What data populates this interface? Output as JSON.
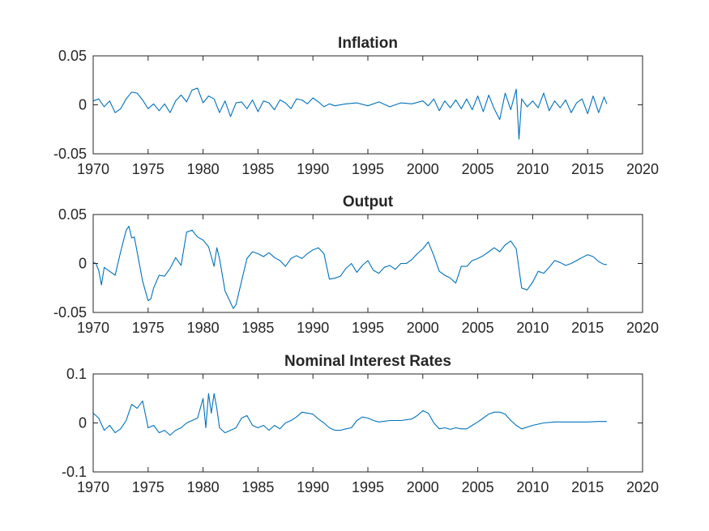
{
  "colors": {
    "series": "#0072BD",
    "axis": "#262626",
    "background": "#ffffff"
  },
  "chart_data": [
    {
      "type": "line",
      "title": "Inflation",
      "xlim": [
        1970,
        2020
      ],
      "ylim": [
        -0.05,
        0.05
      ],
      "xticks": [
        1970,
        1975,
        1980,
        1985,
        1990,
        1995,
        2000,
        2005,
        2010,
        2015,
        2020
      ],
      "xtick_labels": [
        "1970",
        "1975",
        "1980",
        "1985",
        "1990",
        "1995",
        "2000",
        "2005",
        "2010",
        "2015",
        "2020"
      ],
      "yticks": [
        -0.05,
        0,
        0.05
      ],
      "ytick_labels": [
        "-0.05",
        "0",
        "0.05"
      ],
      "grid": false,
      "x": [
        1970.0,
        1970.5,
        1971.0,
        1971.5,
        1972.0,
        1972.5,
        1973.0,
        1973.5,
        1974.0,
        1974.5,
        1975.0,
        1975.5,
        1976.0,
        1976.5,
        1977.0,
        1977.5,
        1978.0,
        1978.5,
        1979.0,
        1979.5,
        1980.0,
        1980.5,
        1981.0,
        1981.5,
        1982.0,
        1982.5,
        1983.0,
        1983.5,
        1984.0,
        1984.5,
        1985.0,
        1985.5,
        1986.0,
        1986.5,
        1987.0,
        1987.5,
        1988.0,
        1988.5,
        1989.0,
        1989.5,
        1990.0,
        1990.5,
        1991.0,
        1991.5,
        1992.0,
        1993.0,
        1994.0,
        1995.0,
        1996.0,
        1997.0,
        1998.0,
        1999.0,
        2000.0,
        2000.5,
        2001.0,
        2001.5,
        2002.0,
        2002.5,
        2003.0,
        2003.5,
        2004.0,
        2004.5,
        2005.0,
        2005.5,
        2006.0,
        2006.5,
        2007.0,
        2007.5,
        2008.0,
        2008.5,
        2008.75,
        2009.0,
        2009.5,
        2010.0,
        2010.5,
        2011.0,
        2011.5,
        2012.0,
        2012.5,
        2013.0,
        2013.5,
        2014.0,
        2014.5,
        2015.0,
        2015.5,
        2016.0,
        2016.5,
        2016.75
      ],
      "series": [
        {
          "values": [
            0.004,
            0.006,
            -0.002,
            0.004,
            -0.008,
            -0.004,
            0.006,
            0.013,
            0.012,
            0.005,
            -0.004,
            0.001,
            -0.006,
            0.001,
            -0.008,
            0.004,
            0.01,
            0.003,
            0.015,
            0.017,
            0.002,
            0.009,
            0.006,
            -0.008,
            0.004,
            -0.012,
            0.002,
            0.003,
            -0.004,
            0.005,
            -0.007,
            0.004,
            0.002,
            -0.005,
            0.005,
            0.002,
            -0.004,
            0.006,
            0.005,
            0.001,
            0.007,
            0.003,
            -0.002,
            0.001,
            -0.001,
            0.001,
            0.002,
            -0.001,
            0.003,
            -0.002,
            0.002,
            0.001,
            0.004,
            -0.001,
            0.006,
            -0.006,
            0.004,
            -0.003,
            0.005,
            -0.004,
            0.006,
            -0.005,
            0.009,
            -0.007,
            0.01,
            -0.004,
            -0.015,
            0.012,
            -0.005,
            0.016,
            -0.035,
            0.006,
            -0.002,
            0.004,
            -0.003,
            0.012,
            -0.006,
            0.004,
            -0.003,
            0.005,
            -0.008,
            0.002,
            0.006,
            -0.009,
            0.009,
            -0.008,
            0.008,
            0.001
          ]
        }
      ]
    },
    {
      "type": "line",
      "title": "Output",
      "xlim": [
        1970,
        2020
      ],
      "ylim": [
        -0.05,
        0.05
      ],
      "xticks": [
        1970,
        1975,
        1980,
        1985,
        1990,
        1995,
        2000,
        2005,
        2010,
        2015,
        2020
      ],
      "xtick_labels": [
        "1970",
        "1975",
        "1980",
        "1985",
        "1990",
        "1995",
        "2000",
        "2005",
        "2010",
        "2015",
        "2020"
      ],
      "yticks": [
        -0.05,
        0,
        0.05
      ],
      "ytick_labels": [
        "-0.05",
        "0",
        "0.05"
      ],
      "grid": false,
      "x": [
        1970.0,
        1970.25,
        1970.5,
        1970.75,
        1971.0,
        1971.5,
        1972.0,
        1972.5,
        1973.0,
        1973.25,
        1973.5,
        1973.75,
        1974.0,
        1974.5,
        1975.0,
        1975.25,
        1975.5,
        1976.0,
        1976.5,
        1977.0,
        1977.5,
        1978.0,
        1978.5,
        1979.0,
        1979.5,
        1980.0,
        1980.5,
        1981.0,
        1981.25,
        1981.5,
        1982.0,
        1982.5,
        1982.75,
        1983.0,
        1983.5,
        1984.0,
        1984.5,
        1985.0,
        1985.5,
        1986.0,
        1986.5,
        1987.0,
        1987.5,
        1988.0,
        1988.5,
        1989.0,
        1989.5,
        1990.0,
        1990.5,
        1991.0,
        1991.5,
        1992.0,
        1992.5,
        1993.0,
        1993.5,
        1994.0,
        1994.5,
        1995.0,
        1995.5,
        1996.0,
        1996.5,
        1997.0,
        1997.5,
        1998.0,
        1998.5,
        1999.0,
        1999.5,
        2000.0,
        2000.5,
        2001.0,
        2001.5,
        2002.0,
        2002.5,
        2003.0,
        2003.5,
        2004.0,
        2004.5,
        2005.0,
        2005.5,
        2006.0,
        2006.5,
        2007.0,
        2007.5,
        2008.0,
        2008.5,
        2009.0,
        2009.5,
        2010.0,
        2010.5,
        2011.0,
        2011.5,
        2012.0,
        2012.5,
        2013.0,
        2013.5,
        2014.0,
        2014.5,
        2015.0,
        2015.5,
        2016.0,
        2016.5,
        2016.75
      ],
      "series": [
        {
          "values": [
            0.001,
            0.0,
            -0.007,
            -0.022,
            -0.004,
            -0.008,
            -0.012,
            0.012,
            0.034,
            0.038,
            0.026,
            0.027,
            0.012,
            -0.018,
            -0.038,
            -0.036,
            -0.025,
            -0.012,
            -0.013,
            -0.005,
            0.006,
            -0.002,
            0.032,
            0.034,
            0.027,
            0.024,
            0.017,
            -0.003,
            0.016,
            0.005,
            -0.028,
            -0.04,
            -0.046,
            -0.042,
            -0.018,
            0.005,
            0.012,
            0.01,
            0.007,
            0.011,
            0.006,
            0.003,
            -0.003,
            0.005,
            0.008,
            0.005,
            0.01,
            0.014,
            0.016,
            0.01,
            -0.016,
            -0.015,
            -0.013,
            -0.005,
            0.0,
            -0.009,
            -0.002,
            0.003,
            -0.007,
            -0.01,
            -0.004,
            -0.002,
            -0.006,
            0.0,
            0.0,
            0.004,
            0.01,
            0.015,
            0.022,
            0.008,
            -0.008,
            -0.012,
            -0.015,
            -0.02,
            -0.003,
            -0.003,
            0.003,
            0.005,
            0.008,
            0.012,
            0.016,
            0.012,
            0.019,
            0.023,
            0.015,
            -0.025,
            -0.027,
            -0.019,
            -0.008,
            -0.01,
            -0.004,
            0.003,
            0.001,
            -0.002,
            0.0,
            0.003,
            0.006,
            0.009,
            0.007,
            0.002,
            -0.001,
            -0.001
          ]
        }
      ]
    },
    {
      "type": "line",
      "title": "Nominal Interest Rates",
      "xlim": [
        1970,
        2020
      ],
      "ylim": [
        -0.1,
        0.1
      ],
      "xticks": [
        1970,
        1975,
        1980,
        1985,
        1990,
        1995,
        2000,
        2005,
        2010,
        2015,
        2020
      ],
      "xtick_labels": [
        "1970",
        "1975",
        "1980",
        "1985",
        "1990",
        "1995",
        "2000",
        "2005",
        "2010",
        "2015",
        "2020"
      ],
      "yticks": [
        -0.1,
        0,
        0.1
      ],
      "ytick_labels": [
        "-0.1",
        "0",
        "0.1"
      ],
      "grid": false,
      "x": [
        1970.0,
        1970.5,
        1971.0,
        1971.5,
        1972.0,
        1972.5,
        1973.0,
        1973.5,
        1974.0,
        1974.5,
        1975.0,
        1975.5,
        1976.0,
        1976.5,
        1977.0,
        1977.5,
        1978.0,
        1978.5,
        1979.0,
        1979.5,
        1980.0,
        1980.25,
        1980.5,
        1980.75,
        1981.0,
        1981.25,
        1981.5,
        1982.0,
        1982.5,
        1983.0,
        1983.5,
        1984.0,
        1984.5,
        1985.0,
        1985.5,
        1986.0,
        1986.5,
        1987.0,
        1987.5,
        1988.0,
        1988.5,
        1989.0,
        1989.5,
        1990.0,
        1990.5,
        1991.0,
        1991.5,
        1992.0,
        1992.5,
        1993.0,
        1993.5,
        1994.0,
        1994.5,
        1995.0,
        1995.5,
        1996.0,
        1997.0,
        1998.0,
        1999.0,
        1999.5,
        2000.0,
        2000.5,
        2001.0,
        2001.5,
        2002.0,
        2002.5,
        2003.0,
        2003.5,
        2004.0,
        2004.5,
        2005.0,
        2005.5,
        2006.0,
        2006.5,
        2007.0,
        2007.5,
        2008.0,
        2008.5,
        2009.0,
        2010.0,
        2011.0,
        2012.0,
        2013.0,
        2014.0,
        2015.0,
        2016.0,
        2016.75
      ],
      "series": [
        {
          "values": [
            0.02,
            0.01,
            -0.015,
            -0.005,
            -0.02,
            -0.012,
            0.005,
            0.038,
            0.03,
            0.045,
            -0.01,
            -0.005,
            -0.02,
            -0.015,
            -0.025,
            -0.015,
            -0.01,
            0.0,
            0.005,
            0.01,
            0.05,
            -0.01,
            0.06,
            0.02,
            0.06,
            0.03,
            -0.01,
            -0.02,
            -0.015,
            -0.01,
            0.01,
            0.015,
            -0.005,
            -0.01,
            -0.005,
            -0.015,
            -0.005,
            -0.012,
            0.0,
            0.005,
            0.012,
            0.022,
            0.02,
            0.018,
            0.008,
            0.0,
            -0.01,
            -0.015,
            -0.015,
            -0.012,
            -0.01,
            0.005,
            0.012,
            0.01,
            0.005,
            0.002,
            0.005,
            0.005,
            0.008,
            0.015,
            0.025,
            0.02,
            0.0,
            -0.012,
            -0.01,
            -0.013,
            -0.01,
            -0.012,
            -0.012,
            -0.005,
            0.002,
            0.01,
            0.018,
            0.022,
            0.022,
            0.018,
            0.005,
            -0.005,
            -0.012,
            -0.005,
            0.0,
            0.002,
            0.002,
            0.002,
            0.002,
            0.003,
            0.003
          ]
        }
      ]
    }
  ]
}
